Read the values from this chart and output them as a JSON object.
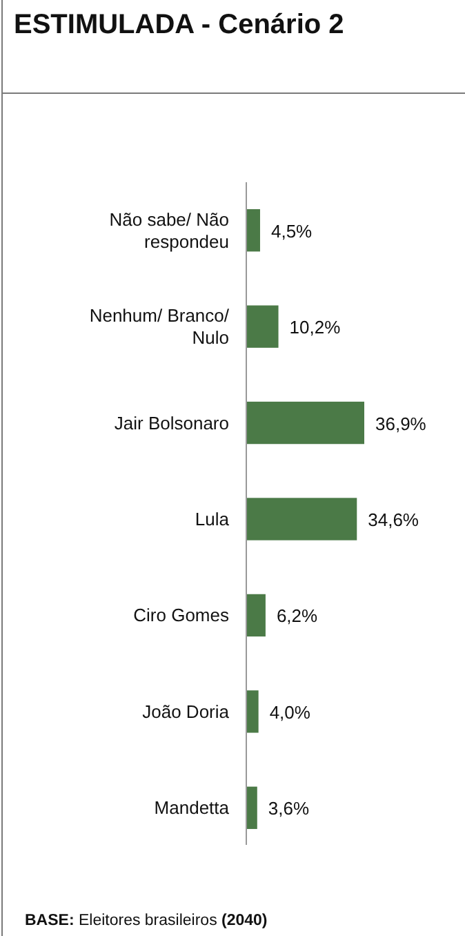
{
  "chart_data": {
    "type": "bar",
    "orientation": "horizontal",
    "title": "ESTIMULADA - Cenário 2",
    "categories": [
      "Não sabe/ Não respondeu",
      "Nenhum/ Branco/ Nulo",
      "Jair Bolsonaro",
      "Lula",
      "Ciro Gomes",
      "João Doria",
      "Mandetta"
    ],
    "values": [
      4.5,
      10.2,
      36.9,
      34.6,
      6.2,
      4.0,
      3.6
    ],
    "value_labels": [
      "4,5%",
      "10,2%",
      "36,9%",
      "34,6%",
      "6,2%",
      "4,0%",
      "3,6%"
    ],
    "color": "#4b7a47",
    "annotations": [
      "BASE: Eleitores brasileiros (2040)"
    ]
  }
}
